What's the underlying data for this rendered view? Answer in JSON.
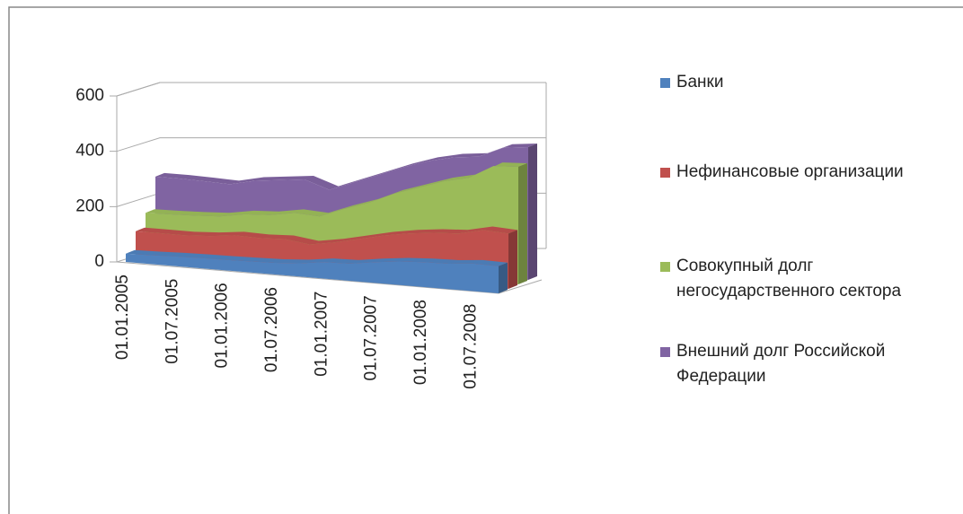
{
  "chart_data": {
    "type": "area3d",
    "categories": [
      "01.01.2005",
      null,
      "01.07.2005",
      null,
      "01.01.2006",
      null,
      "01.07.2006",
      null,
      "01.01.2007",
      null,
      "01.07.2007",
      null,
      "01.01.2008",
      null,
      "01.07.2008",
      null
    ],
    "series": [
      {
        "name": "Банки",
        "color": "#4f81bd",
        "values": [
          30,
          32,
          35,
          37,
          38,
          40,
          42,
          48,
          60,
          62,
          75,
          85,
          90,
          92,
          100,
          98
        ]
      },
      {
        "name": "Нефинансовые организации",
        "color": "#c0504d",
        "values": [
          95,
          95,
          95,
          100,
          110,
          108,
          112,
          100,
          115,
          135,
          155,
          170,
          180,
          185,
          205,
          200
        ]
      },
      {
        "name": "Совокупный долг негосударственного сектора",
        "color": "#9bbb59",
        "values": [
          145,
          147,
          150,
          155,
          170,
          175,
          190,
          185,
          220,
          250,
          290,
          320,
          350,
          370,
          420,
          425
        ]
      },
      {
        "name": "Внешний долг Российской Федерации",
        "color": "#8064a2",
        "values": [
          260,
          260,
          258,
          255,
          275,
          285,
          295,
          265,
          300,
          335,
          370,
          400,
          420,
          430,
          470,
          480
        ]
      }
    ],
    "ylim": [
      0,
      600
    ],
    "yticks": [
      0,
      200,
      400,
      600
    ],
    "grid": true,
    "legend": "right"
  }
}
